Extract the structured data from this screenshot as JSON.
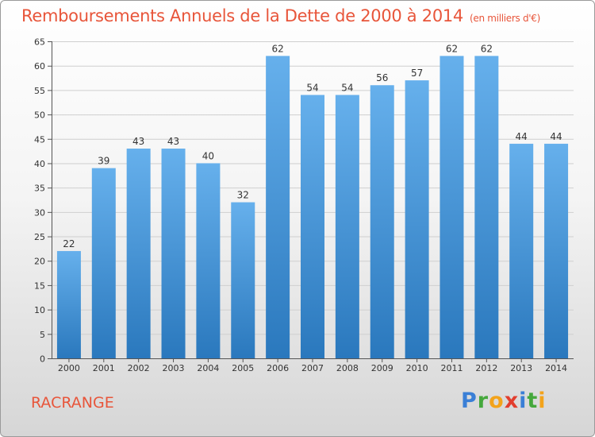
{
  "chart_data": {
    "type": "bar",
    "title": "Remboursements Annuels de la Dette de 2000 à 2014",
    "unit": "(en milliers d'€)",
    "categories": [
      "2000",
      "2001",
      "2002",
      "2003",
      "2004",
      "2005",
      "2006",
      "2007",
      "2008",
      "2009",
      "2010",
      "2011",
      "2012",
      "2013",
      "2014"
    ],
    "values": [
      22,
      39,
      43,
      43,
      40,
      32,
      62,
      54,
      54,
      56,
      57,
      62,
      62,
      44,
      44
    ],
    "yticks": [
      0,
      5,
      10,
      15,
      20,
      25,
      30,
      35,
      40,
      45,
      50,
      55,
      60,
      65
    ],
    "ylim": [
      0,
      65
    ],
    "xlabel": "",
    "ylabel": "",
    "grid": true,
    "bar_color_top": "#66b0ec",
    "bar_color_bottom": "#2a78bd"
  },
  "footer": {
    "city": "RACRANGE",
    "logo": {
      "p": "P",
      "r": "r",
      "o": "o",
      "x": "x",
      "i": "i",
      "t": "t",
      "i2": "i"
    }
  },
  "colors": {
    "title": "#e8553a",
    "grid": "#cfcfcf",
    "axis": "#555555"
  }
}
